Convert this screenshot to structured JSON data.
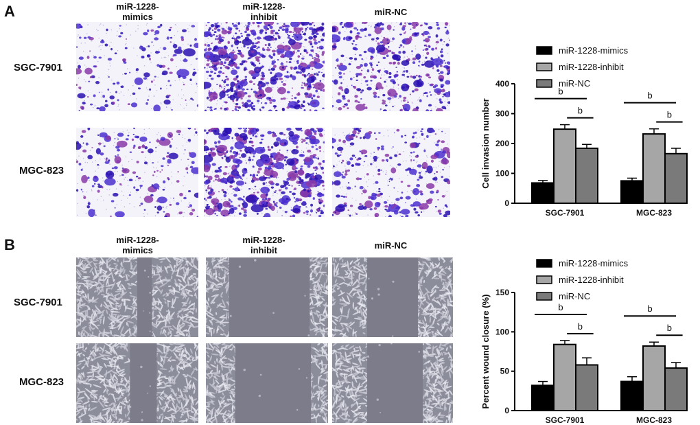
{
  "panel_A": {
    "letter": "A",
    "column_labels": [
      "miR-1228-\nmimics",
      "miR-1228-\ninhibit",
      "miR-NC"
    ],
    "row_labels": [
      "SGC-7901",
      "MGC-823"
    ]
  },
  "panel_B": {
    "letter": "B",
    "column_labels": [
      "miR-1228-\nmimics",
      "miR-1228-\ninhibit",
      "miR-NC"
    ],
    "row_labels": [
      "SGC-7901",
      "MGC-823"
    ]
  },
  "colors": {
    "mimics": "#000000",
    "inhibit": "#a6a6a6",
    "nc": "#7a7a7a",
    "stain": "#4b2fcf",
    "stain_dark": "#2a10b0",
    "stain_pink": "#8a3aa8",
    "phase_bg": "#8c8d9b",
    "phase_cell": "#c9cbd6",
    "wound": "#7c7c8a"
  },
  "chart_data": [
    {
      "type": "bar",
      "categories": [
        "SGC-7901",
        "MGC-823"
      ],
      "series": [
        {
          "name": "miR-1228-mimics",
          "values": [
            68,
            75
          ],
          "errors": [
            8,
            9
          ]
        },
        {
          "name": "miR-1228-inhibit",
          "values": [
            248,
            232
          ],
          "errors": [
            15,
            17
          ]
        },
        {
          "name": "miR-NC",
          "values": [
            184,
            166
          ],
          "errors": [
            13,
            18
          ]
        }
      ],
      "ylabel": "Cell invasion number",
      "ylim": [
        0,
        400
      ],
      "yticks": [
        "0",
        "100",
        "200",
        "300",
        "400"
      ],
      "significance": "b",
      "legend": "top-right"
    },
    {
      "type": "bar",
      "categories": [
        "SGC-7901",
        "MGC-823"
      ],
      "series": [
        {
          "name": "miR-1228-mimics",
          "values": [
            32,
            37
          ],
          "errors": [
            5,
            6
          ]
        },
        {
          "name": "miR-1228-inhibit",
          "values": [
            84,
            82
          ],
          "errors": [
            5,
            5
          ]
        },
        {
          "name": "miR-NC",
          "values": [
            58,
            54
          ],
          "errors": [
            9,
            7
          ]
        }
      ],
      "ylabel": "Percent wound closure (%)",
      "ylim": [
        0,
        150
      ],
      "yticks": [
        "0",
        "50",
        "100",
        "150"
      ],
      "significance": "b",
      "legend": "top-right"
    }
  ]
}
